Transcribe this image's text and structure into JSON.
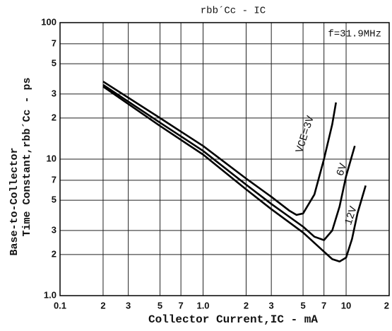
{
  "chart_data": {
    "type": "line",
    "title": "rbb´Cc - IC",
    "annotation": "f=31.9MHz",
    "x_label": "Collector Current,IC - mA",
    "y_label": [
      "Base-to-Collector",
      "Time Constant,rbb´Cc - ps"
    ],
    "x_log": true,
    "y_log": true,
    "grid": true,
    "xlim": [
      0.1,
      20
    ],
    "ylim": [
      1,
      100
    ],
    "xticks": [
      0.1,
      {
        "value": 0.2,
        "label": "2"
      },
      {
        "value": 0.3,
        "label": "3"
      },
      {
        "value": 0.5,
        "label": "5"
      },
      {
        "value": 0.7,
        "label": "7"
      },
      {
        "value": 1,
        "label": "1.0"
      },
      {
        "value": 2,
        "label": "2"
      },
      {
        "value": 3,
        "label": "3"
      },
      {
        "value": 5,
        "label": "5"
      },
      {
        "value": 7,
        "label": "7"
      },
      10,
      {
        "value": 20,
        "label": "2"
      }
    ],
    "yticks": [
      {
        "value": 1,
        "label": "1.0"
      },
      2,
      3,
      5,
      7,
      10,
      {
        "value": 20,
        "label": "2"
      },
      {
        "value": 30,
        "label": "3"
      },
      {
        "value": 50,
        "label": "5"
      },
      {
        "value": 70,
        "label": "7"
      },
      100
    ],
    "series": [
      {
        "name": "VCE=3V",
        "color": "#000000",
        "x": [
          0.2,
          0.5,
          1,
          2,
          3,
          4,
          4.5,
          5,
          6,
          7,
          8,
          8.5
        ],
        "values": [
          37,
          20,
          12.5,
          7.2,
          5.3,
          4.2,
          3.9,
          4,
          5.5,
          10,
          18,
          26
        ]
      },
      {
        "name": "6V",
        "color": "#000000",
        "x": [
          0.2,
          0.5,
          1,
          2,
          3,
          5,
          6,
          7,
          8,
          9,
          10,
          11.5
        ],
        "values": [
          35,
          18.5,
          11.5,
          6.5,
          4.7,
          3.2,
          2.7,
          2.55,
          3,
          4.5,
          7.5,
          12.5
        ]
      },
      {
        "name": "12V",
        "color": "#000000",
        "x": [
          0.2,
          0.5,
          1,
          2,
          3,
          5,
          7,
          8,
          9,
          10,
          11,
          12,
          13.7
        ],
        "values": [
          34,
          17.5,
          10.8,
          6,
          4.3,
          2.9,
          2.1,
          1.85,
          1.78,
          1.9,
          2.6,
          4,
          6.4
        ]
      }
    ]
  }
}
